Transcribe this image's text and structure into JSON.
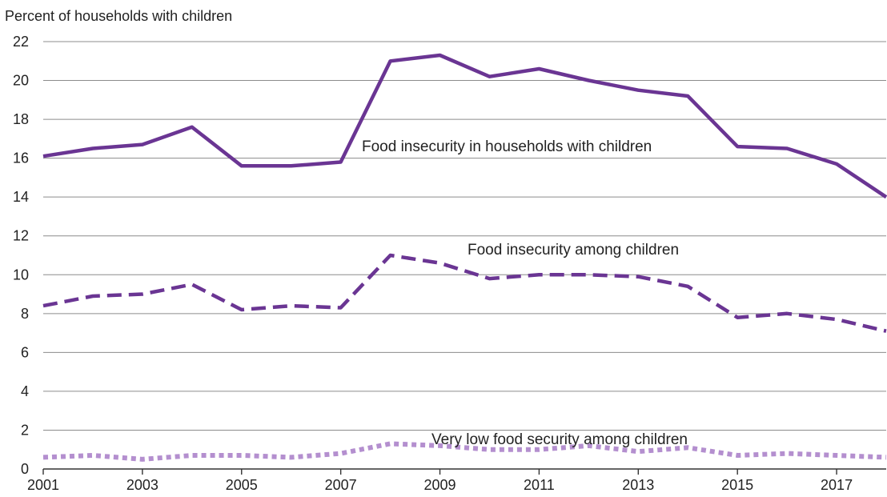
{
  "chart_data": {
    "type": "line",
    "ylabel": "Percent of households with children",
    "xlabel": "",
    "xlim": [
      2001,
      2018
    ],
    "ylim": [
      0,
      22
    ],
    "y_ticks": [
      0,
      2,
      4,
      6,
      8,
      10,
      12,
      14,
      16,
      18,
      20,
      22
    ],
    "x_ticks": [
      2001,
      2003,
      2005,
      2007,
      2009,
      2011,
      2013,
      2015,
      2017
    ],
    "grid": "horizontal",
    "x": [
      2001,
      2002,
      2003,
      2004,
      2005,
      2006,
      2007,
      2008,
      2009,
      2010,
      2011,
      2012,
      2013,
      2014,
      2015,
      2016,
      2017,
      2018
    ],
    "series": [
      {
        "name": "Food insecurity in households with children",
        "style": "solid",
        "color": "#6a3593",
        "values": [
          16.1,
          16.5,
          16.7,
          17.6,
          15.6,
          15.6,
          15.8,
          21.0,
          21.3,
          20.2,
          20.6,
          20.0,
          19.5,
          19.2,
          16.6,
          16.5,
          15.7,
          14.0
        ]
      },
      {
        "name": "Food insecurity among children",
        "style": "dashed",
        "color": "#6a3593",
        "values": [
          8.4,
          8.9,
          9.0,
          9.5,
          8.2,
          8.4,
          8.3,
          11.0,
          10.6,
          9.8,
          10.0,
          10.0,
          9.9,
          9.4,
          7.8,
          8.0,
          7.7,
          7.1
        ]
      },
      {
        "name": "Very low food security among children",
        "style": "dotted",
        "color": "#b48fcf",
        "values": [
          0.6,
          0.7,
          0.5,
          0.7,
          0.7,
          0.6,
          0.8,
          1.3,
          1.2,
          1.0,
          1.0,
          1.2,
          0.9,
          1.1,
          0.7,
          0.8,
          0.7,
          0.6
        ]
      }
    ]
  }
}
